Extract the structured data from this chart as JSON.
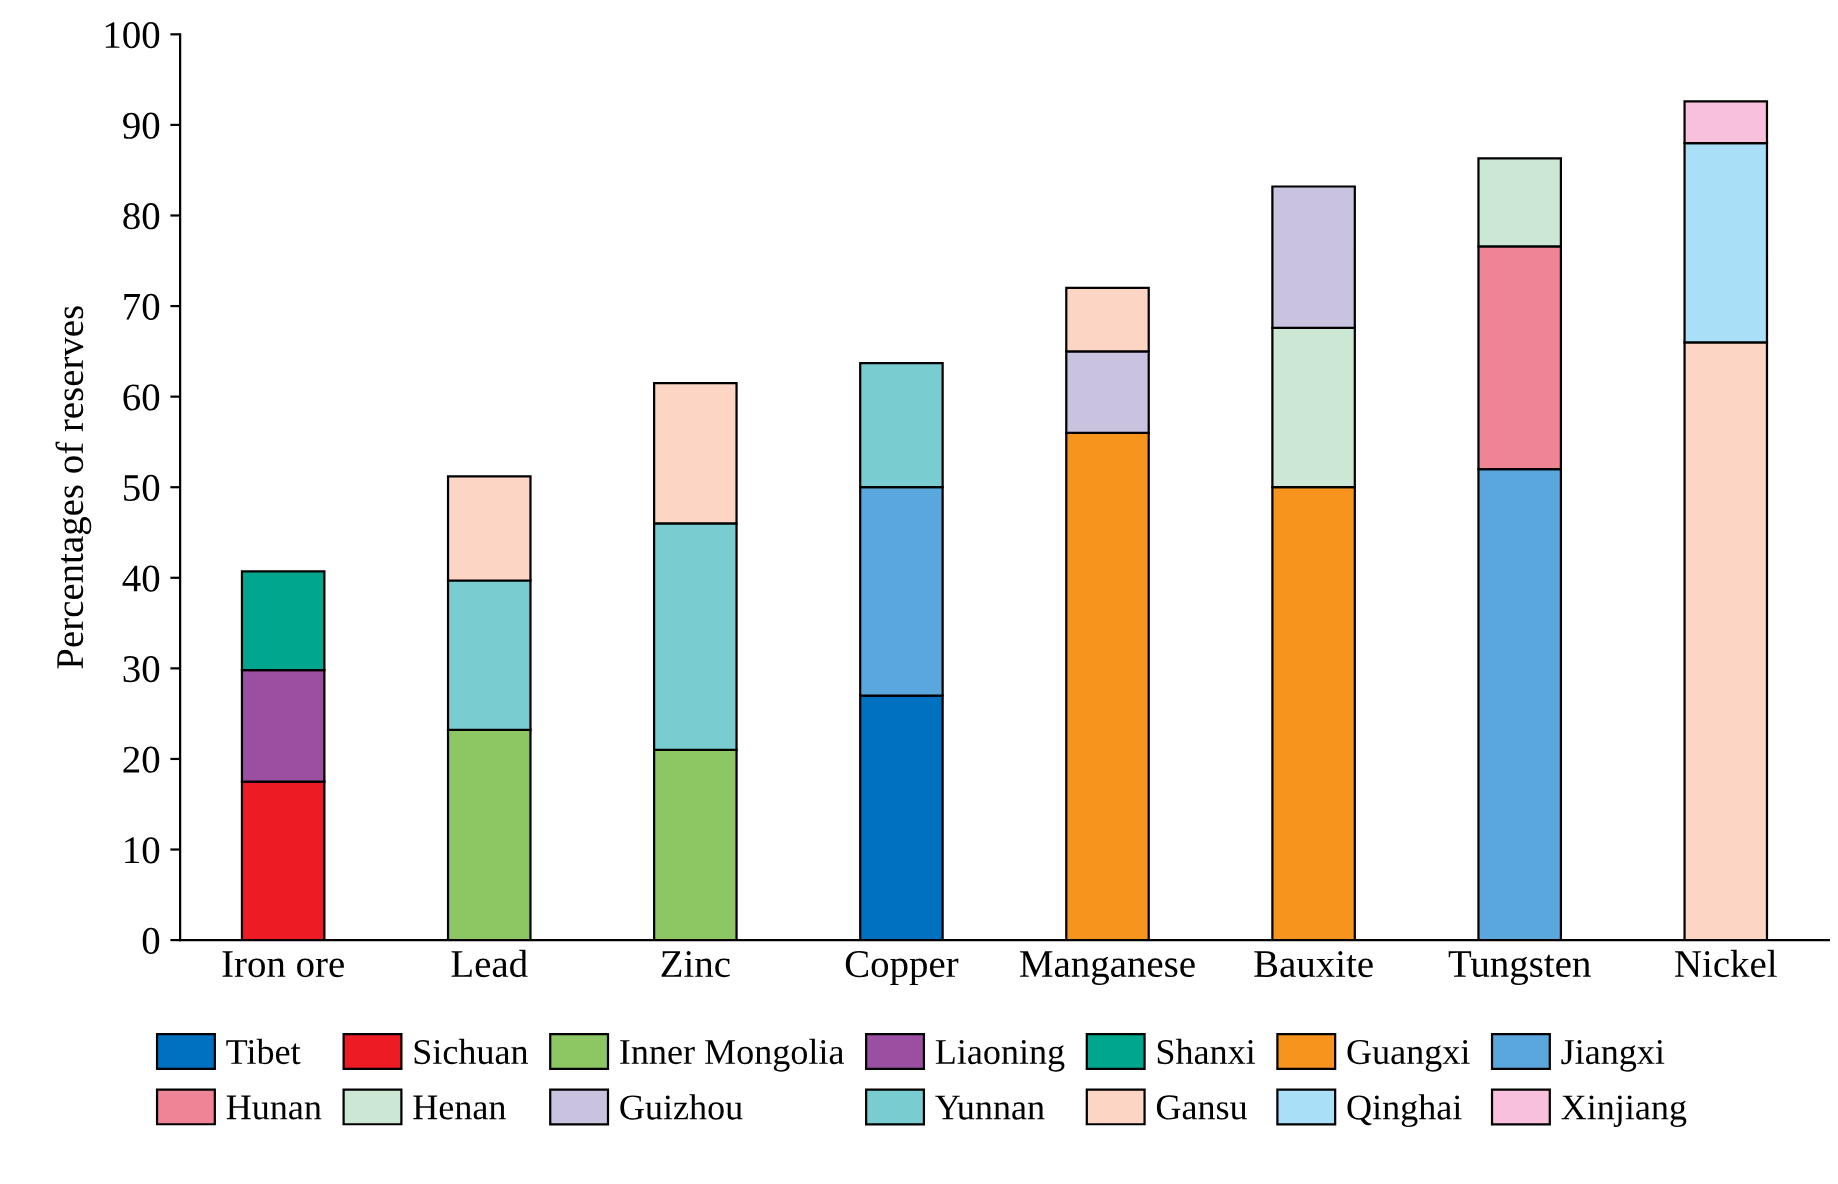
{
  "chart_data": {
    "type": "bar",
    "stacked": true,
    "ylabel": "Percentages of reserves",
    "categories": [
      "Iron ore",
      "Lead",
      "Zinc",
      "Copper",
      "Manganese",
      "Bauxite",
      "Tungsten",
      "Nickel"
    ],
    "ylim": [
      0,
      100
    ],
    "yticks": [
      0,
      10,
      20,
      30,
      40,
      50,
      60,
      70,
      80,
      90,
      100
    ],
    "grid": false,
    "legend": "bottom",
    "series": [
      {
        "name": "Tibet",
        "color": "#0070c0",
        "values": [
          null,
          null,
          null,
          27,
          null,
          null,
          null,
          null
        ]
      },
      {
        "name": "Sichuan",
        "color": "#ed1c24",
        "values": [
          17.5,
          null,
          null,
          null,
          null,
          null,
          null,
          null
        ]
      },
      {
        "name": "Inner Mongolia",
        "color": "#8cc764",
        "values": [
          null,
          23.2,
          21,
          null,
          null,
          null,
          null,
          null
        ]
      },
      {
        "name": "Liaoning",
        "color": "#9b4fa0",
        "values": [
          12.3,
          null,
          null,
          null,
          null,
          null,
          null,
          null
        ]
      },
      {
        "name": "Shanxi",
        "color": "#00a78e",
        "values": [
          10.9,
          null,
          null,
          null,
          null,
          null,
          null,
          null
        ]
      },
      {
        "name": "Guangxi",
        "color": "#f7941d",
        "values": [
          null,
          null,
          null,
          null,
          56,
          50,
          null,
          null
        ]
      },
      {
        "name": "Jiangxi",
        "color": "#5aa7dd",
        "values": [
          null,
          null,
          null,
          23,
          null,
          null,
          52,
          null
        ]
      },
      {
        "name": "Hunan",
        "color": "#f08497",
        "values": [
          null,
          null,
          null,
          null,
          null,
          null,
          24.6,
          null
        ]
      },
      {
        "name": "Henan",
        "color": "#cce8d4",
        "values": [
          null,
          null,
          null,
          null,
          null,
          17.6,
          9.7,
          null
        ]
      },
      {
        "name": "Guizhou",
        "color": "#c9c3e0",
        "values": [
          null,
          null,
          null,
          null,
          9,
          15.6,
          null,
          null
        ]
      },
      {
        "name": "Yunnan",
        "color": "#79cdd1",
        "values": [
          null,
          16.5,
          25,
          13.7,
          null,
          null,
          null,
          null
        ]
      },
      {
        "name": "Gansu",
        "color": "#fcd5c4",
        "values": [
          null,
          11.5,
          15.5,
          null,
          7,
          null,
          null,
          66
        ]
      },
      {
        "name": "Qinghai",
        "color": "#a9dff7",
        "values": [
          null,
          null,
          null,
          null,
          null,
          null,
          null,
          22
        ]
      },
      {
        "name": "Xinjiang",
        "color": "#f9c0dd",
        "values": [
          null,
          null,
          null,
          null,
          null,
          null,
          null,
          4.6
        ]
      }
    ]
  }
}
